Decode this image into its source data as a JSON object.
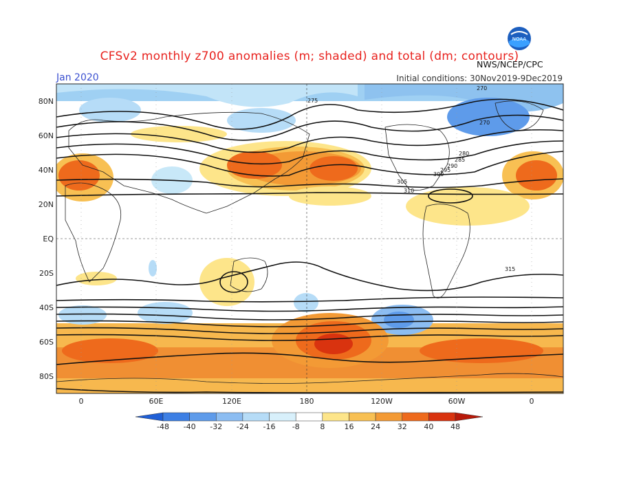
{
  "header": {
    "title": "CFSv2 monthly z700 anomalies (m; shaded) and total (dm; contours)",
    "month": "Jan 2020",
    "initial_conditions": "Initial conditions: 30Nov2019-9Dec2019",
    "agency": "NWS/NCEP/CPC",
    "logo_text": "NOAA"
  },
  "axes": {
    "lat_labels": [
      "80N",
      "60N",
      "40N",
      "20N",
      "EQ",
      "20S",
      "40S",
      "60S",
      "80S"
    ],
    "lon_labels": [
      "0",
      "60E",
      "120E",
      "180",
      "120W",
      "60W",
      "0"
    ]
  },
  "contour_labels": [
    "275",
    "270",
    "270",
    "280",
    "285",
    "290",
    "295",
    "300",
    "305",
    "310",
    "315"
  ],
  "colorbar": {
    "ticks": [
      "-48",
      "-40",
      "-32",
      "-24",
      "-16",
      "-8",
      "8",
      "16",
      "24",
      "32",
      "40",
      "48"
    ],
    "colors": [
      "#1f5fd6",
      "#3d7fe4",
      "#5e9bea",
      "#8cbdf2",
      "#b6dcf7",
      "#d8f0fb",
      "#ffffff",
      "#fde58a",
      "#f8c053",
      "#f39a35",
      "#ee6a1c",
      "#d9330f",
      "#b81a0a"
    ]
  }
}
